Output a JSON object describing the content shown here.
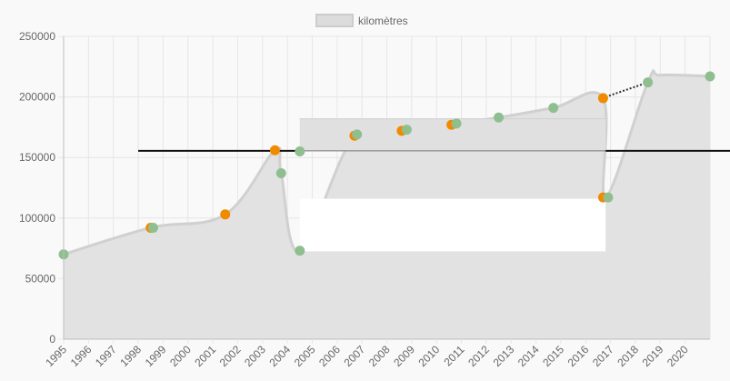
{
  "chart_data": {
    "type": "area",
    "legend": {
      "label": "kilomètres",
      "position": "top",
      "swatch_color": "#dcdcdc"
    },
    "grid": true,
    "x_labels": [
      "1995",
      "1996",
      "1997",
      "1998",
      "1999",
      "2000",
      "2001",
      "2002",
      "2003",
      "2004",
      "2005",
      "2006",
      "2007",
      "2008",
      "2009",
      "2010",
      "2011",
      "2012",
      "2013",
      "2014",
      "2015",
      "2016",
      "2017",
      "2018",
      "2019",
      "2020"
    ],
    "ylim": [
      0,
      250000
    ],
    "y_ticks": [
      0,
      50000,
      100000,
      150000,
      200000,
      250000
    ],
    "y_tick_labels": [
      "0",
      "50000",
      "100000",
      "150000",
      "200000",
      "250000"
    ],
    "series": [
      {
        "name": "kilomètres",
        "fill_color": "#e0e0e0",
        "line_color": "#d0d0d0",
        "points": [
          {
            "x": 1995.0,
            "y": 70000
          },
          {
            "x": 1998.5,
            "y": 92000
          },
          {
            "x": 2001.5,
            "y": 103000
          },
          {
            "x": 2003.5,
            "y": 156000
          },
          {
            "x": 2003.75,
            "y": 137000
          },
          {
            "x": 2004.5,
            "y": 73000
          },
          {
            "x": 2006.7,
            "y": 168000
          },
          {
            "x": 2008.7,
            "y": 173000
          },
          {
            "x": 2010.7,
            "y": 178000
          },
          {
            "x": 2012.5,
            "y": 183000
          },
          {
            "x": 2014.7,
            "y": 191000
          },
          {
            "x": 2016.7,
            "y": 199000
          },
          {
            "x": 2016.8,
            "y": 117000
          },
          {
            "x": 2018.5,
            "y": 212000
          },
          {
            "x": 2019.0,
            "y": 218000
          },
          {
            "x": 2021.0,
            "y": 217000
          }
        ]
      }
    ],
    "markers_green": [
      {
        "x": 1995.0,
        "y": 70000
      },
      {
        "x": 1998.6,
        "y": 92000
      },
      {
        "x": 2003.75,
        "y": 137000
      },
      {
        "x": 2004.5,
        "y": 155000
      },
      {
        "x": 2004.5,
        "y": 73000
      },
      {
        "x": 2006.8,
        "y": 169000
      },
      {
        "x": 2008.8,
        "y": 173000
      },
      {
        "x": 2010.8,
        "y": 178000
      },
      {
        "x": 2012.5,
        "y": 183000
      },
      {
        "x": 2014.7,
        "y": 191000
      },
      {
        "x": 2016.9,
        "y": 117000
      },
      {
        "x": 2018.5,
        "y": 212000
      },
      {
        "x": 2021.0,
        "y": 217000
      }
    ],
    "markers_orange": [
      {
        "x": 1998.5,
        "y": 92000
      },
      {
        "x": 2001.5,
        "y": 103000
      },
      {
        "x": 2003.5,
        "y": 156000
      },
      {
        "x": 2006.7,
        "y": 168000
      },
      {
        "x": 2008.6,
        "y": 172000
      },
      {
        "x": 2010.6,
        "y": 177000
      },
      {
        "x": 2016.7,
        "y": 199000
      },
      {
        "x": 2016.7,
        "y": 117000
      }
    ],
    "reference_line": {
      "y": 155500,
      "color": "#111111"
    },
    "dotted_segment": {
      "from": {
        "x": 2016.8,
        "y": 200000
      },
      "to": {
        "x": 2018.5,
        "y": 212000
      },
      "color": "#333333"
    },
    "colors": {
      "green": "#8fbf8f",
      "orange": "#f08a00",
      "grid": "#e6e6e6",
      "axis": "#bdbdbd"
    }
  }
}
